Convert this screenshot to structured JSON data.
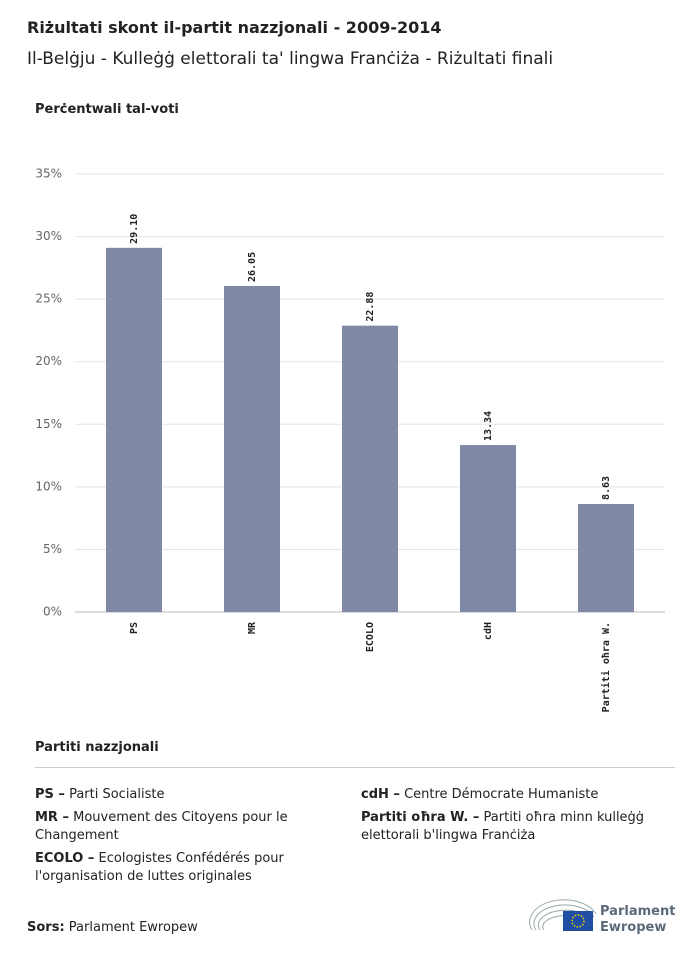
{
  "header": {
    "title": "Riżultati skont il-partit nazzjonali - 2009-2014",
    "subtitle": "Il-Belġju - Kulleġġ elettorali ta' lingwa Franċiża - Riżultati finali"
  },
  "chart_data": {
    "type": "bar",
    "y_label": "Perċentwali tal-voti",
    "categories": [
      "PS",
      "MR",
      "ECOLO",
      "cdH",
      "Partiti oħra W."
    ],
    "values": [
      29.1,
      26.05,
      22.88,
      13.34,
      8.63
    ],
    "value_labels": [
      "29.10",
      "26.05",
      "22.88",
      "13.34",
      "8.63"
    ],
    "color": "#7f88a5",
    "ylim": [
      0,
      35
    ],
    "yticks": [
      {
        "value": 0,
        "label": "0%"
      },
      {
        "value": 5,
        "label": "5%"
      },
      {
        "value": 10,
        "label": "10%"
      },
      {
        "value": 15,
        "label": "15%"
      },
      {
        "value": 20,
        "label": "20%"
      },
      {
        "value": 25,
        "label": "25%"
      },
      {
        "value": 30,
        "label": "30%"
      },
      {
        "value": 35,
        "label": "35%"
      }
    ],
    "grid": true
  },
  "legend": {
    "title": "Partiti nazzjonali",
    "entries": [
      {
        "abbr": "PS –",
        "text": "Parti Socialiste"
      },
      {
        "abbr": "MR –",
        "text": "Mouvement des Citoyens pour le Changement"
      },
      {
        "abbr": "ECOLO –",
        "text": "Ecologistes Confédérés pour l'organisation de luttes originales"
      },
      {
        "abbr": "cdH –",
        "text": "Centre Démocrate Humaniste"
      },
      {
        "abbr": "Partiti oħra W. –",
        "text": "Partiti oħra minn kulleġġ elettorali b'lingwa Franċiża"
      }
    ]
  },
  "footer": {
    "source_label": "Sors:",
    "source": "Parlament Ewropew",
    "logo": [
      "Parlament",
      "Ewropew"
    ]
  }
}
